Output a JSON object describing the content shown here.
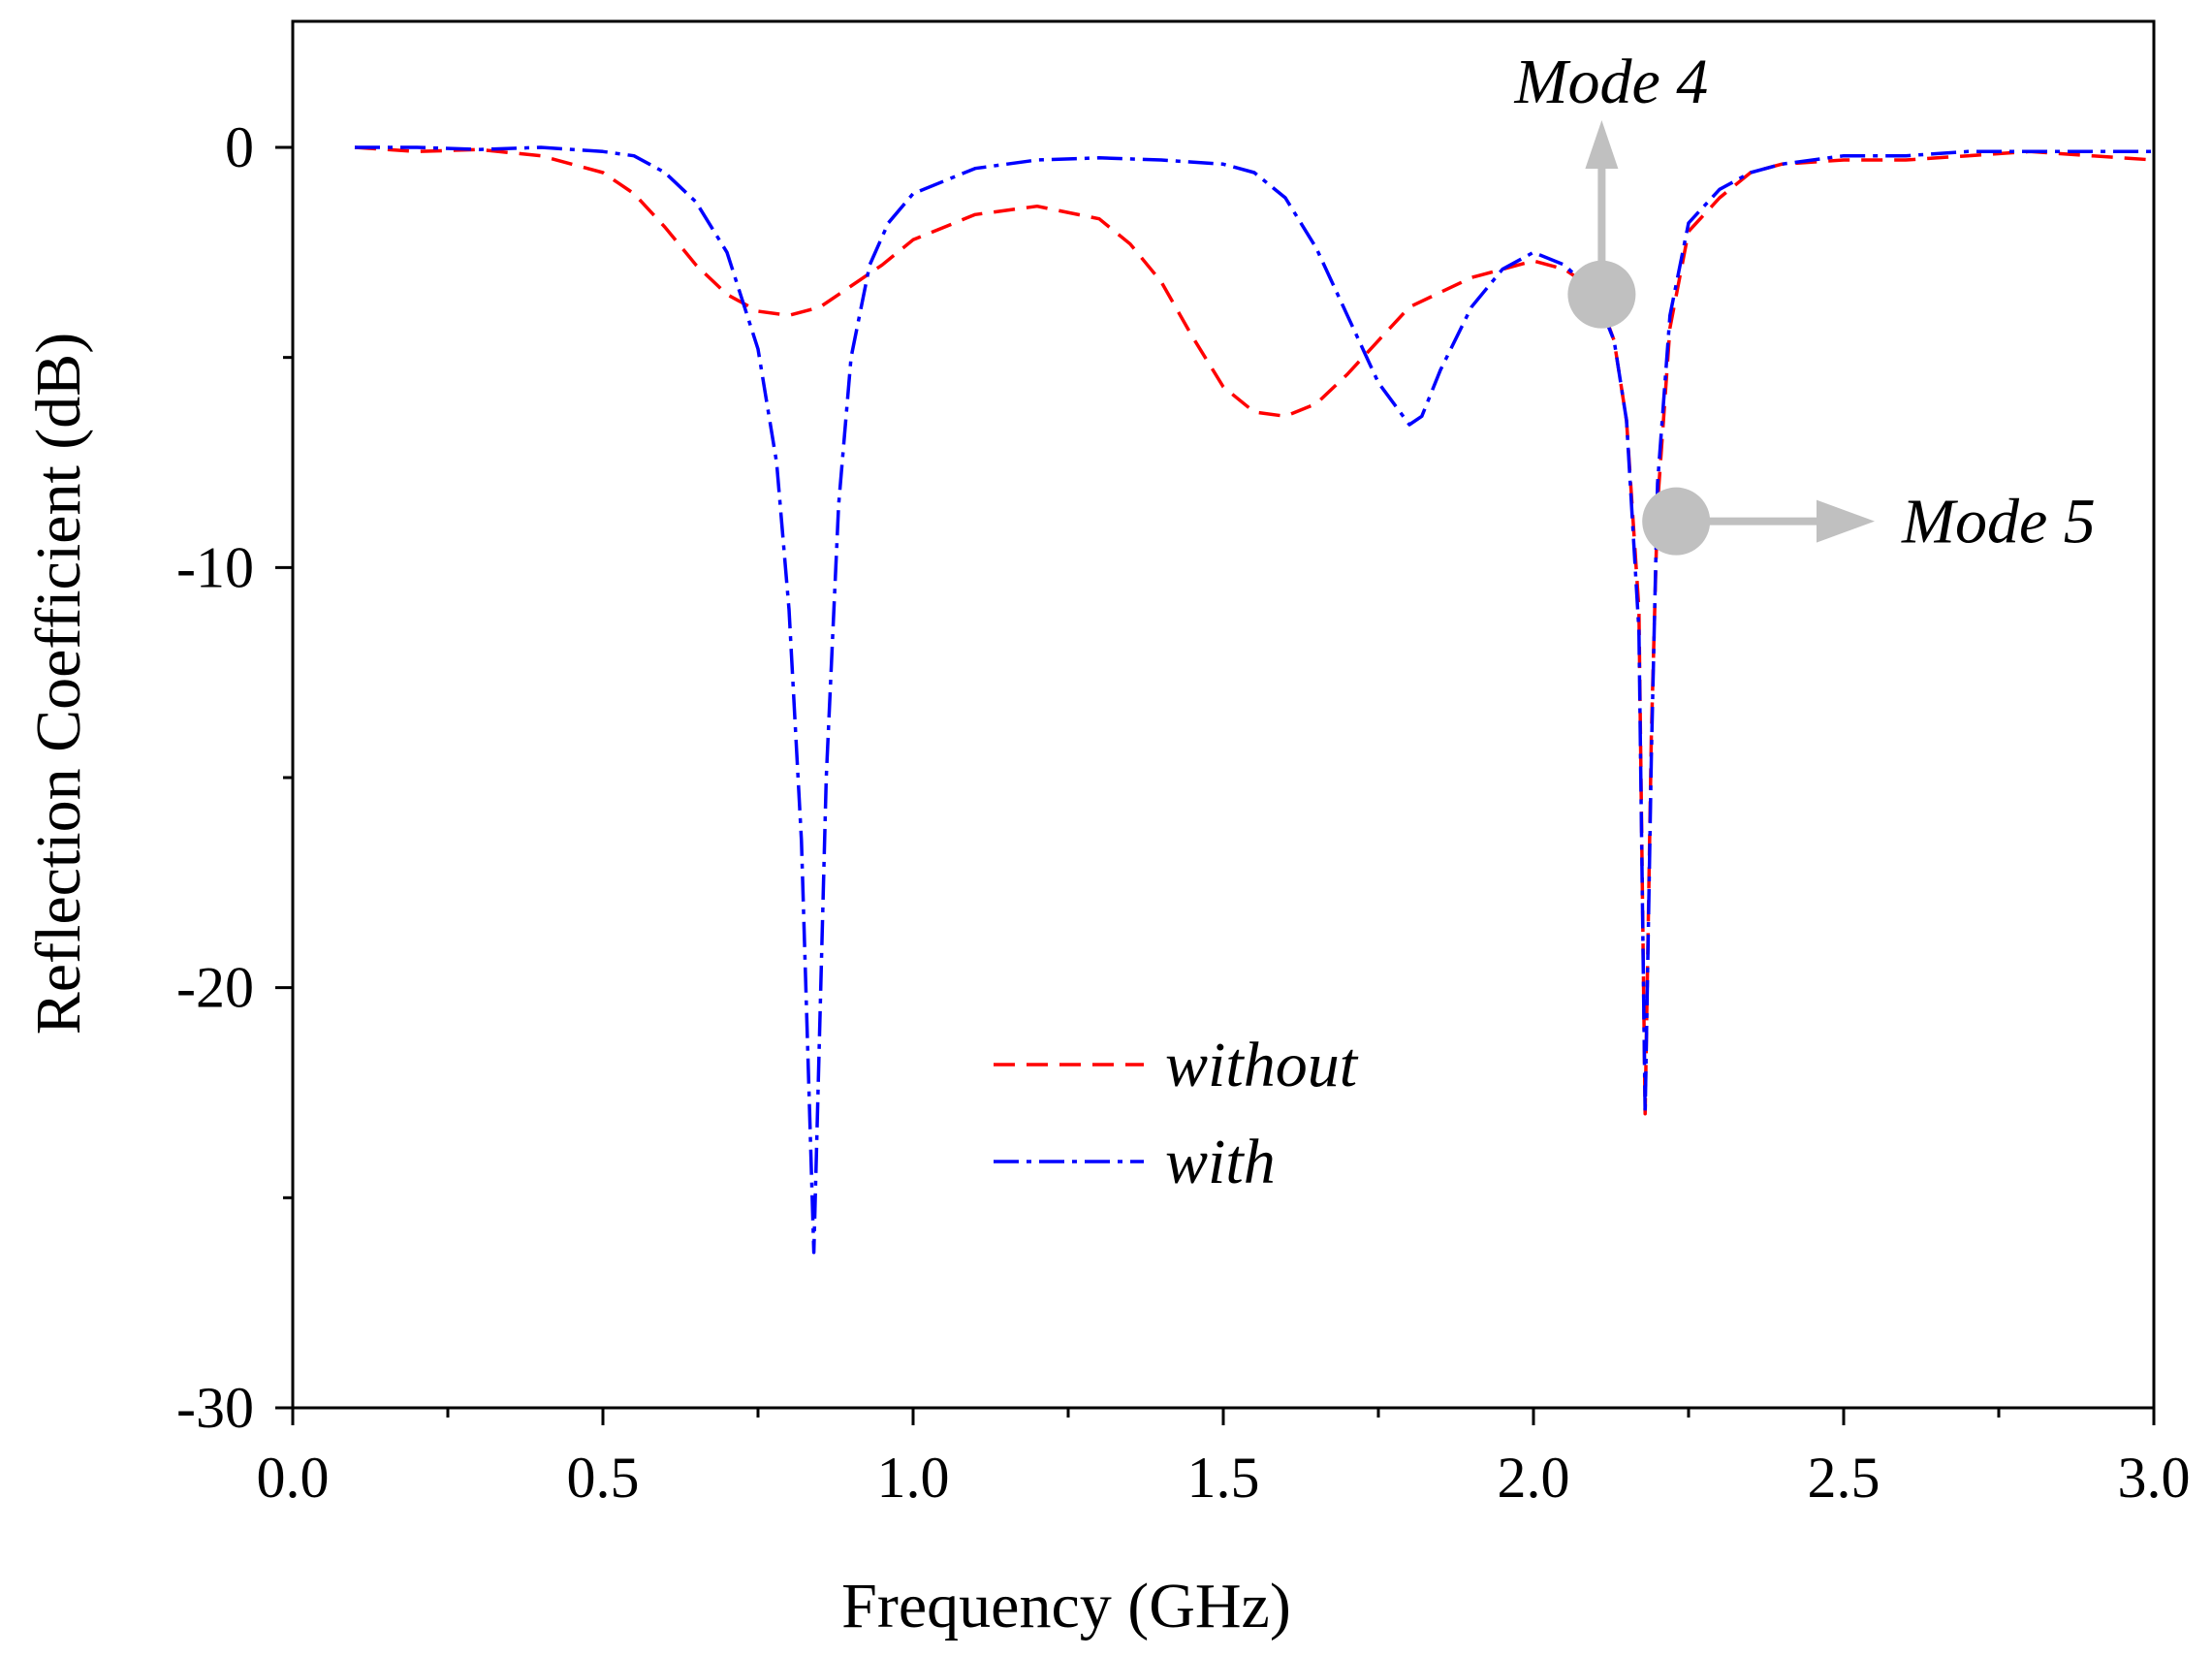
{
  "chart_data": {
    "type": "line",
    "xlabel": "Frequency (GHz)",
    "ylabel": "Reflection Coefficient (dB)",
    "xlim": [
      0.0,
      3.0
    ],
    "ylim": [
      -30,
      3
    ],
    "x_ticks": [
      0.0,
      0.5,
      1.0,
      1.5,
      2.0,
      2.5,
      3.0
    ],
    "x_tick_labels": [
      "0.0",
      "0.5",
      "1.0",
      "1.5",
      "2.0",
      "2.5",
      "3.0"
    ],
    "y_ticks": [
      -30,
      -20,
      -10,
      0
    ],
    "y_tick_labels": [
      "-30",
      "-20",
      "-10",
      "0"
    ],
    "grid": false,
    "legend_position": "center-bottom",
    "series": [
      {
        "name": "without",
        "color": "#ff0000",
        "style": "dash",
        "x": [
          0.1,
          0.2,
          0.3,
          0.4,
          0.5,
          0.55,
          0.6,
          0.65,
          0.7,
          0.75,
          0.8,
          0.85,
          0.9,
          0.95,
          1.0,
          1.1,
          1.2,
          1.3,
          1.35,
          1.4,
          1.45,
          1.5,
          1.55,
          1.6,
          1.65,
          1.7,
          1.75,
          1.8,
          1.9,
          2.0,
          2.05,
          2.1,
          2.13,
          2.15,
          2.17,
          2.18,
          2.19,
          2.2,
          2.22,
          2.25,
          2.3,
          2.35,
          2.4,
          2.5,
          2.6,
          2.7,
          2.8,
          2.9,
          3.0
        ],
        "y": [
          0,
          -0.1,
          -0.05,
          -0.2,
          -0.6,
          -1.1,
          -1.9,
          -2.8,
          -3.5,
          -3.9,
          -4.0,
          -3.8,
          -3.3,
          -2.8,
          -2.2,
          -1.6,
          -1.4,
          -1.7,
          -2.3,
          -3.2,
          -4.5,
          -5.7,
          -6.3,
          -6.4,
          -6.1,
          -5.4,
          -4.6,
          -3.8,
          -3.1,
          -2.7,
          -2.9,
          -3.4,
          -4.6,
          -6.5,
          -11.0,
          -23.0,
          -14.0,
          -8.5,
          -4.3,
          -2.0,
          -1.2,
          -0.6,
          -0.4,
          -0.3,
          -0.3,
          -0.2,
          -0.1,
          -0.2,
          -0.3
        ]
      },
      {
        "name": "with",
        "color": "#0000ff",
        "style": "dashdot",
        "x": [
          0.1,
          0.2,
          0.3,
          0.4,
          0.5,
          0.55,
          0.6,
          0.65,
          0.7,
          0.75,
          0.78,
          0.8,
          0.82,
          0.84,
          0.86,
          0.88,
          0.9,
          0.93,
          0.96,
          1.0,
          1.1,
          1.2,
          1.3,
          1.4,
          1.5,
          1.55,
          1.6,
          1.65,
          1.7,
          1.75,
          1.8,
          1.82,
          1.85,
          1.9,
          1.95,
          2.0,
          2.05,
          2.1,
          2.13,
          2.15,
          2.17,
          2.18,
          2.19,
          2.2,
          2.22,
          2.25,
          2.3,
          2.35,
          2.4,
          2.5,
          2.6,
          2.7,
          2.8,
          2.9,
          3.0
        ],
        "y": [
          0,
          0,
          -0.05,
          0,
          -0.1,
          -0.2,
          -0.6,
          -1.3,
          -2.5,
          -4.8,
          -7.5,
          -11.0,
          -16.5,
          -26.3,
          -15.0,
          -8.5,
          -5.0,
          -2.8,
          -1.8,
          -1.1,
          -0.5,
          -0.3,
          -0.25,
          -0.3,
          -0.4,
          -0.6,
          -1.2,
          -2.4,
          -4.0,
          -5.6,
          -6.6,
          -6.4,
          -5.3,
          -3.8,
          -2.9,
          -2.5,
          -2.8,
          -3.5,
          -4.6,
          -6.5,
          -11.5,
          -23.0,
          -14.5,
          -8.0,
          -4.0,
          -1.8,
          -1.0,
          -0.6,
          -0.4,
          -0.2,
          -0.2,
          -0.1,
          -0.1,
          -0.1,
          -0.1
        ]
      }
    ],
    "annotations": [
      {
        "text": "Mode 4",
        "x": 2.11,
        "y": -3.5,
        "arrow": "up"
      },
      {
        "text": "Mode 5",
        "x": 2.23,
        "y": -8.9,
        "arrow": "right"
      }
    ]
  }
}
